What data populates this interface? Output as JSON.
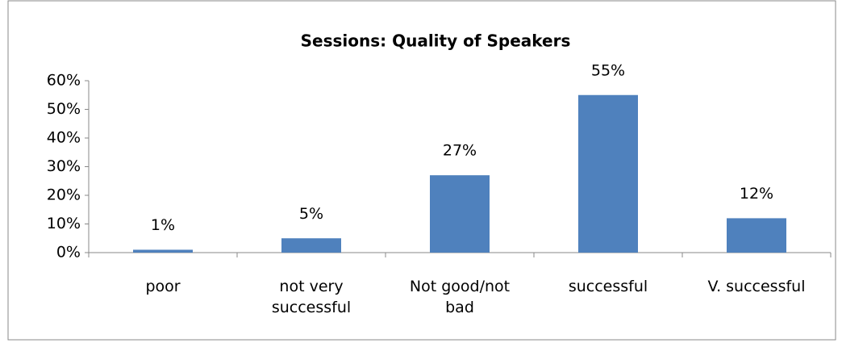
{
  "chart_data": {
    "type": "bar",
    "title": "Sessions: Quality of Speakers",
    "categories": [
      "poor",
      "not very successful",
      "Not good/not bad",
      "successful",
      "V. successful"
    ],
    "values": [
      1,
      5,
      27,
      55,
      12
    ],
    "value_labels": [
      "1%",
      "5%",
      "27%",
      "55%",
      "12%"
    ],
    "color": "#4f81bd",
    "ylim": [
      0,
      60
    ],
    "yticks": [
      {
        "value": 0,
        "label": "0%"
      },
      {
        "value": 10,
        "label": "10%"
      },
      {
        "value": 20,
        "label": "20%"
      },
      {
        "value": 30,
        "label": "30%"
      },
      {
        "value": 40,
        "label": "40%"
      },
      {
        "value": 50,
        "label": "50%"
      },
      {
        "value": 60,
        "label": "60%"
      }
    ],
    "grid": false
  }
}
